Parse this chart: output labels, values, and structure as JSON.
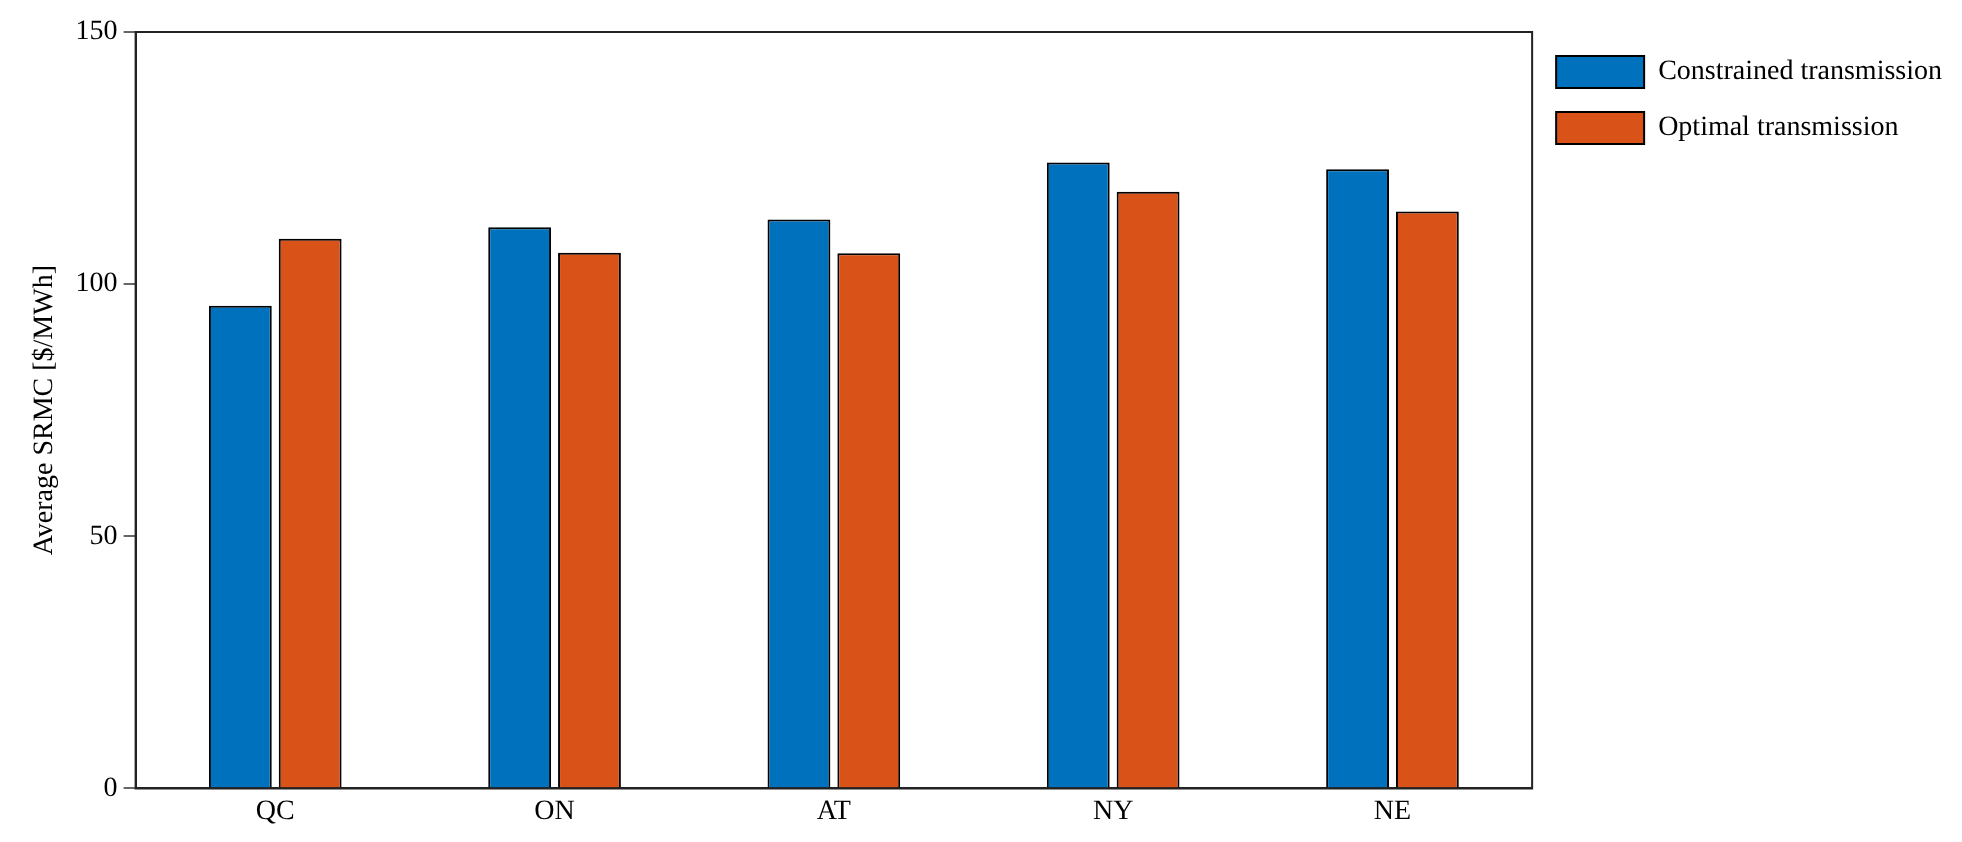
{
  "chart_data": {
    "type": "bar",
    "ylabel": "Average SRMC [$/MWh]",
    "categories": [
      "QC",
      "ON",
      "AT",
      "NY",
      "NE"
    ],
    "series": [
      {
        "name": "Constrained transmission",
        "color": "#0072bd",
        "values": [
          95.7,
          111.3,
          112.8,
          124.1,
          122.8
        ]
      },
      {
        "name": "Optimal transmission",
        "color": "#d95319",
        "values": [
          109.0,
          106.2,
          106.1,
          118.3,
          114.4
        ]
      }
    ],
    "ylim": [
      0,
      150
    ],
    "yticks": [
      0,
      50,
      100,
      150
    ],
    "grid": false,
    "legend": "top right"
  }
}
